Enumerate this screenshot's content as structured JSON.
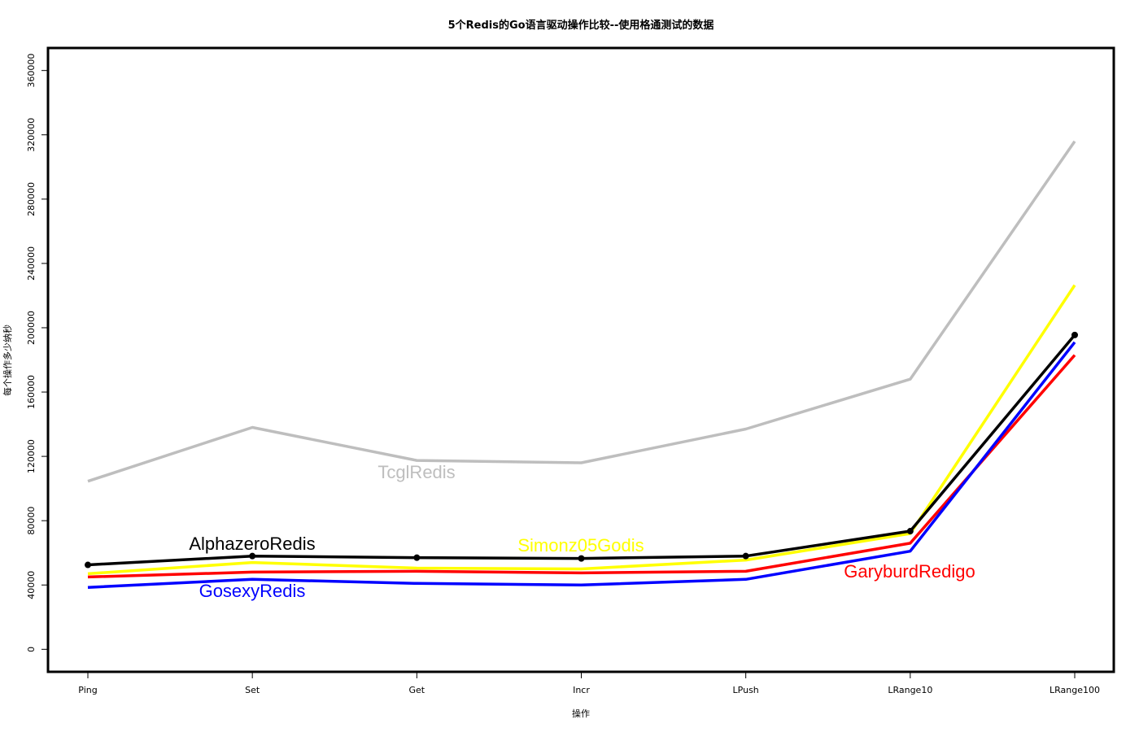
{
  "chart_data": {
    "type": "line",
    "title": "5个Redis的Go语言驱动操作比较--使用格通测试的数据",
    "xlabel": "操作",
    "ylabel": "每个操作多少纳秒",
    "categories": [
      "Ping",
      "Set",
      "Get",
      "Incr",
      "LPush",
      "LRange10",
      "LRange100"
    ],
    "ylim": [
      -14000,
      374000
    ],
    "yticks": [
      0,
      40000,
      80000,
      120000,
      160000,
      200000,
      240000,
      280000,
      320000,
      360000
    ],
    "grid": false,
    "legend": "none (series labeled inline)",
    "series": [
      {
        "name": "TcglRedis",
        "color": "#BEBEBE",
        "values": [
          104500,
          138000,
          117500,
          116000,
          137000,
          168000,
          316000
        ],
        "markers": false,
        "label_at": 2
      },
      {
        "name": "Simonz05Godis",
        "color": "#FFFF00",
        "values": [
          47000,
          54000,
          50500,
          50000,
          55500,
          72000,
          226500
        ],
        "markers": false,
        "label_at": 3
      },
      {
        "name": "GaryburdRedigo",
        "color": "#FF0000",
        "values": [
          45000,
          48000,
          48500,
          47500,
          48500,
          66000,
          183000
        ],
        "markers": false,
        "label_at": 5
      },
      {
        "name": "GosexyRedis",
        "color": "#0000FF",
        "values": [
          38500,
          43500,
          41000,
          40000,
          43500,
          61000,
          191000
        ],
        "markers": false,
        "label_at": 1
      },
      {
        "name": "AlphazeroRedis",
        "color": "#000000",
        "values": [
          52500,
          58000,
          57000,
          56500,
          58000,
          73500,
          195500
        ],
        "markers": true,
        "label_at": 1
      }
    ]
  }
}
